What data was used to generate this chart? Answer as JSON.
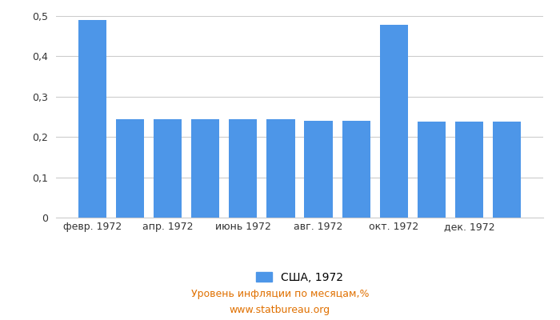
{
  "months": [
    "февр. 1972",
    "февр. 1972",
    "апр. 1972",
    "апр. 1972",
    "июнь 1972",
    "июнь 1972",
    "авг. 1972",
    "авг. 1972",
    "окт. 1972",
    "окт. 1972",
    "дек. 1972",
    "дек. 1972"
  ],
  "tick_labels": [
    "февр. 1972",
    "",
    "апр. 1972",
    "",
    "июнь 1972",
    "",
    "авг. 1972",
    "",
    "окт. 1972",
    "",
    "дек. 1972",
    ""
  ],
  "values": [
    0.49,
    0.245,
    0.245,
    0.244,
    0.244,
    0.244,
    0.24,
    0.241,
    0.478,
    0.239,
    0.239,
    0.239
  ],
  "bar_color": "#4d96e8",
  "legend_label": "США, 1972",
  "ylabel_text": "Уровень инфляции по месяцам,%",
  "source_text": "www.statbureau.org",
  "ylim": [
    0,
    0.5
  ],
  "yticks": [
    0,
    0.1,
    0.2,
    0.3,
    0.4,
    0.5
  ],
  "background_color": "#ffffff",
  "grid_color": "#cccccc"
}
